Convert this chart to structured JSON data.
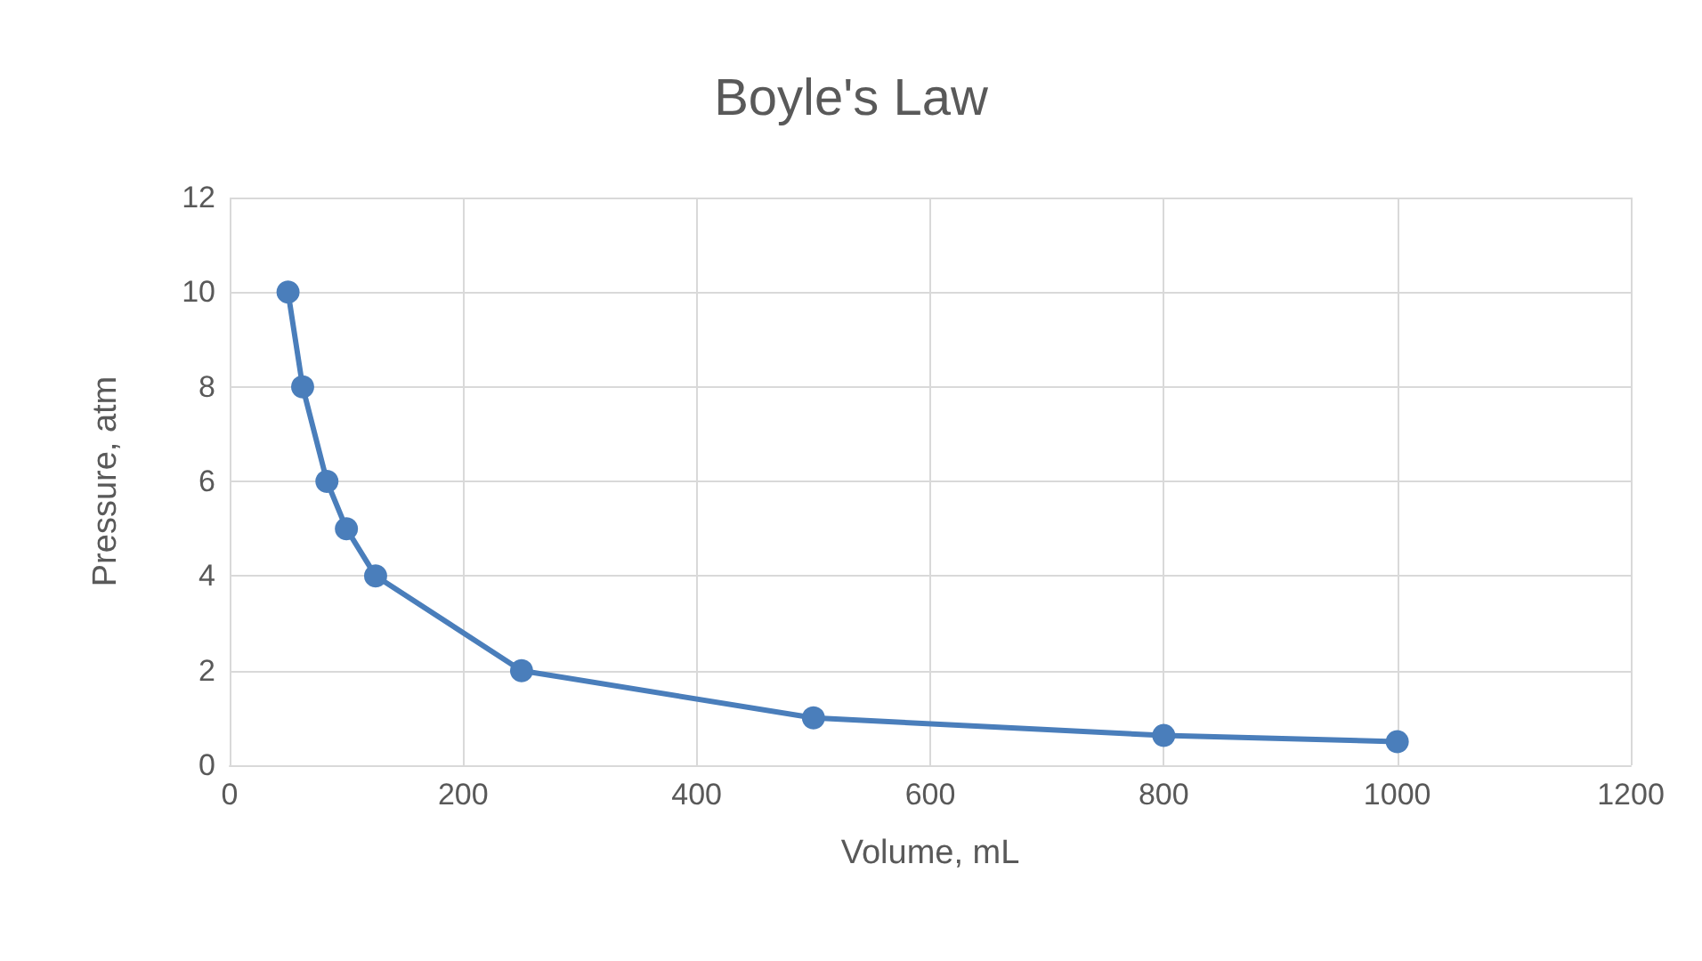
{
  "chart_data": {
    "type": "line",
    "title": "Boyle's Law",
    "xlabel": "Volume, mL",
    "ylabel": "Pressure, atm",
    "x": [
      50,
      62.5,
      83.3,
      100,
      125,
      250,
      500,
      800,
      1000
    ],
    "series": [
      {
        "color": "#4a7ebb",
        "values": [
          10,
          8,
          6,
          5,
          4,
          2,
          1,
          0.63,
          0.5
        ]
      }
    ],
    "xlim": [
      0,
      1200
    ],
    "xticks": [
      0,
      200,
      400,
      600,
      800,
      1000,
      1200
    ],
    "ylim": [
      0,
      12
    ],
    "yticks": [
      0,
      2,
      4,
      6,
      8,
      10,
      12
    ],
    "grid": true,
    "marker": "circle",
    "line_style": "solid"
  }
}
